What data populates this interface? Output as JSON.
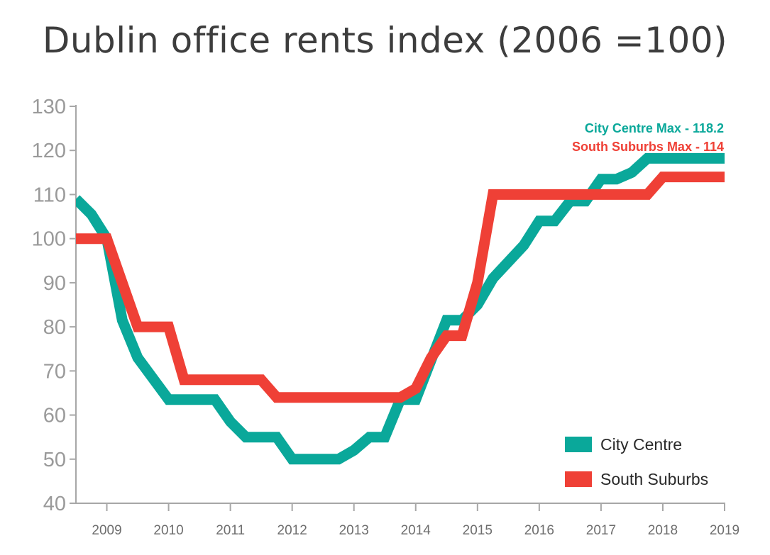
{
  "title": "Dublin office rents index (2006 =100)",
  "colors": {
    "city_centre": "#0aa89a",
    "south_suburbs": "#ef4036",
    "axis": "#a7a7a7"
  },
  "chart_data": {
    "type": "line",
    "title": "Dublin office rents index (2006 =100)",
    "xlabel": "",
    "ylabel": "",
    "ylim": [
      40,
      130
    ],
    "xlim": [
      2008.5,
      2019
    ],
    "y_ticks": [
      40,
      50,
      60,
      70,
      80,
      90,
      100,
      110,
      120,
      130
    ],
    "x_ticks": [
      2009,
      2010,
      2011,
      2012,
      2013,
      2014,
      2015,
      2016,
      2017,
      2018,
      2019
    ],
    "grid": false,
    "legend_position": "bottom-right",
    "series": [
      {
        "name": "City Centre",
        "color": "#0aa89a",
        "points": [
          [
            2008.5,
            109
          ],
          [
            2008.75,
            105.5
          ],
          [
            2009.0,
            100
          ],
          [
            2009.25,
            81.5
          ],
          [
            2009.5,
            73
          ],
          [
            2010.0,
            63.5
          ],
          [
            2010.75,
            63.5
          ],
          [
            2011.0,
            58.5
          ],
          [
            2011.25,
            55
          ],
          [
            2011.75,
            55
          ],
          [
            2012.0,
            50
          ],
          [
            2012.25,
            50
          ],
          [
            2012.75,
            50
          ],
          [
            2013.0,
            52
          ],
          [
            2013.25,
            55
          ],
          [
            2013.5,
            55
          ],
          [
            2013.75,
            63.5
          ],
          [
            2014.0,
            63.5
          ],
          [
            2014.25,
            72.5
          ],
          [
            2014.5,
            81.5
          ],
          [
            2014.75,
            81.5
          ],
          [
            2015.0,
            85
          ],
          [
            2015.25,
            91
          ],
          [
            2015.75,
            98.5
          ],
          [
            2016.0,
            104
          ],
          [
            2016.25,
            104
          ],
          [
            2016.5,
            108.5
          ],
          [
            2016.75,
            108.5
          ],
          [
            2017.0,
            113.5
          ],
          [
            2017.25,
            113.5
          ],
          [
            2017.5,
            115
          ],
          [
            2017.75,
            118.2
          ],
          [
            2019.0,
            118.2
          ]
        ]
      },
      {
        "name": "South Suburbs",
        "color": "#ef4036",
        "points": [
          [
            2008.5,
            100
          ],
          [
            2009.0,
            100
          ],
          [
            2009.5,
            80
          ],
          [
            2010.0,
            80
          ],
          [
            2010.25,
            68
          ],
          [
            2011.5,
            68
          ],
          [
            2011.75,
            64
          ],
          [
            2013.75,
            64
          ],
          [
            2014.0,
            66
          ],
          [
            2014.25,
            73
          ],
          [
            2014.5,
            78
          ],
          [
            2014.75,
            78
          ],
          [
            2015.0,
            90
          ],
          [
            2015.25,
            110
          ],
          [
            2017.5,
            110
          ],
          [
            2017.75,
            110
          ],
          [
            2018.0,
            114
          ],
          [
            2019.0,
            114
          ]
        ]
      }
    ],
    "annotations": [
      {
        "text": "City Centre Max - 118.2",
        "color": "#0aa89a"
      },
      {
        "text": "South Suburbs Max - 114",
        "color": "#ef4036"
      }
    ]
  }
}
